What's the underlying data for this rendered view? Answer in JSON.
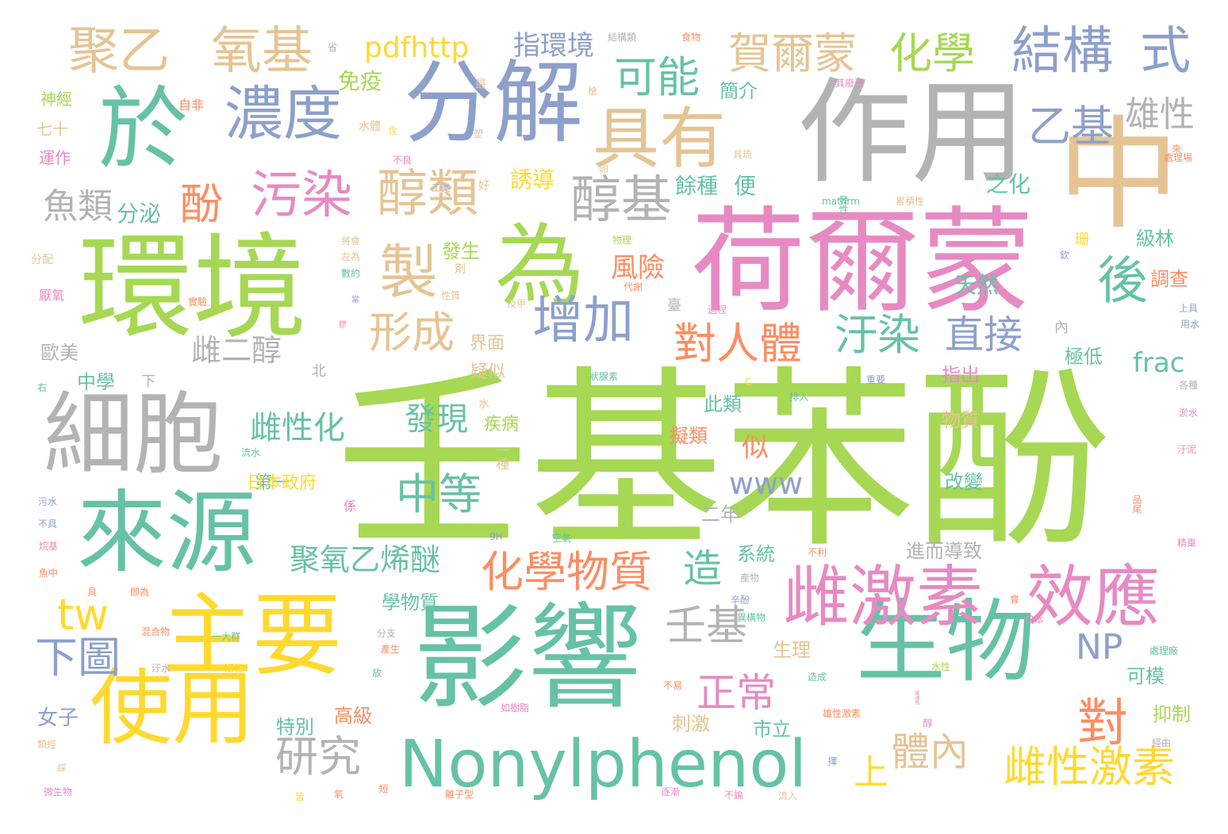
{
  "palette": {
    "green": "#a6d854",
    "teal": "#66c2a5",
    "orange": "#fc8d62",
    "blue": "#8da0cb",
    "pink": "#e78ac3",
    "yellow": "#ffd92f",
    "tan": "#e5c494",
    "gray": "#b3b3b3"
  },
  "words": [
    {
      "text": "壬基苯酚",
      "color": "green"
    },
    {
      "text": "荷爾蒙",
      "color": "pink"
    },
    {
      "text": "作用",
      "color": "gray"
    },
    {
      "text": "中",
      "color": "tan"
    },
    {
      "text": "環境",
      "color": "green"
    },
    {
      "text": "影響",
      "color": "teal"
    },
    {
      "text": "主要",
      "color": "yellow"
    },
    {
      "text": "分解",
      "color": "blue"
    },
    {
      "text": "生物",
      "color": "teal"
    },
    {
      "text": "細胞",
      "color": "gray"
    },
    {
      "text": "來源",
      "color": "teal"
    },
    {
      "text": "使用",
      "color": "yellow"
    },
    {
      "text": "於",
      "color": "teal"
    },
    {
      "text": "為",
      "color": "green"
    },
    {
      "text": "Nonylphenol",
      "color": "teal"
    },
    {
      "text": "雌激素",
      "color": "pink"
    },
    {
      "text": "效應",
      "color": "pink"
    },
    {
      "text": "具有",
      "color": "tan"
    },
    {
      "text": "濃度",
      "color": "blue"
    },
    {
      "text": "製",
      "color": "tan"
    },
    {
      "text": "聚乙",
      "color": "tan"
    },
    {
      "text": "氧基",
      "color": "tan"
    },
    {
      "text": "結構",
      "color": "blue"
    },
    {
      "text": "式",
      "color": "blue"
    },
    {
      "text": "賀爾蒙",
      "color": "tan"
    },
    {
      "text": "化學",
      "color": "green"
    },
    {
      "text": "增加",
      "color": "blue"
    },
    {
      "text": "污染",
      "color": "pink"
    },
    {
      "text": "醇類",
      "color": "tan"
    },
    {
      "text": "醇基",
      "color": "gray"
    },
    {
      "text": "可能",
      "color": "teal"
    },
    {
      "text": "後",
      "color": "teal"
    },
    {
      "text": "乙基",
      "color": "blue"
    },
    {
      "text": "雄性",
      "color": "gray"
    },
    {
      "text": "形成",
      "color": "tan"
    },
    {
      "text": "對人體",
      "color": "orange"
    },
    {
      "text": "汙染",
      "color": "teal"
    },
    {
      "text": "直接",
      "color": "blue"
    },
    {
      "text": "化學物質",
      "color": "orange"
    },
    {
      "text": "中等",
      "color": "teal"
    },
    {
      "text": "壬基",
      "color": "gray"
    },
    {
      "text": "正常",
      "color": "pink"
    },
    {
      "text": "對",
      "color": "orange"
    },
    {
      "text": "NP",
      "color": "blue"
    },
    {
      "text": "雌性激素",
      "color": "yellow"
    },
    {
      "text": "體內",
      "color": "tan"
    },
    {
      "text": "上",
      "color": "yellow"
    },
    {
      "text": "研究",
      "color": "gray"
    },
    {
      "text": "tw",
      "color": "yellow"
    },
    {
      "text": "下圖",
      "color": "blue"
    },
    {
      "text": "pdfhttp",
      "color": "yellow"
    },
    {
      "text": "酚",
      "color": "orange"
    },
    {
      "text": "魚類",
      "color": "gray"
    },
    {
      "text": "造",
      "color": "teal"
    },
    {
      "text": "聚氧乙烯醚",
      "color": "teal"
    },
    {
      "text": "雌二醇",
      "color": "gray"
    },
    {
      "text": "雌性化",
      "color": "teal"
    },
    {
      "text": "發現",
      "color": "teal"
    },
    {
      "text": "似",
      "color": "orange"
    },
    {
      "text": "www",
      "color": "blue"
    },
    {
      "text": "frac",
      "color": "teal"
    },
    {
      "text": "指環境",
      "color": "blue"
    },
    {
      "text": "風險",
      "color": "orange"
    },
    {
      "text": "天然",
      "color": "teal"
    },
    {
      "text": "免疫",
      "color": "green"
    },
    {
      "text": "分泌",
      "color": "teal"
    },
    {
      "text": "誘導",
      "color": "yellow"
    },
    {
      "text": "餘種",
      "color": "teal"
    },
    {
      "text": "便",
      "color": "teal"
    },
    {
      "text": "之化",
      "color": "teal"
    },
    {
      "text": "簡介",
      "color": "teal"
    },
    {
      "text": "級林",
      "color": "teal"
    },
    {
      "text": "珊",
      "color": "yellow"
    },
    {
      "text": "調查",
      "color": "orange"
    },
    {
      "text": "極低",
      "color": "teal"
    },
    {
      "text": "指出",
      "color": "pink"
    },
    {
      "text": "物質",
      "color": "tan"
    },
    {
      "text": "改變",
      "color": "teal"
    },
    {
      "text": "進而導致",
      "color": "gray"
    },
    {
      "text": "此類",
      "color": "teal"
    },
    {
      "text": "擬類",
      "color": "orange"
    },
    {
      "text": "疾病",
      "color": "green"
    },
    {
      "text": "中學",
      "color": "teal"
    },
    {
      "text": "下",
      "color": "gray"
    },
    {
      "text": "北",
      "color": "gray"
    },
    {
      "text": "歐美",
      "color": "gray"
    },
    {
      "text": "第一",
      "color": "teal"
    },
    {
      "text": "日本政府",
      "color": "yellow"
    },
    {
      "text": "二年",
      "color": "gray"
    },
    {
      "text": "系統",
      "color": "teal"
    },
    {
      "text": "學物質",
      "color": "teal"
    },
    {
      "text": "生理",
      "color": "tan"
    },
    {
      "text": "高級",
      "color": "orange"
    },
    {
      "text": "特別",
      "color": "teal"
    },
    {
      "text": "刺激",
      "color": "tan"
    },
    {
      "text": "市立",
      "color": "teal"
    },
    {
      "text": "女子",
      "color": "blue"
    },
    {
      "text": "可模",
      "color": "teal"
    },
    {
      "text": "抑制",
      "color": "green"
    },
    {
      "text": "發生",
      "color": "green"
    },
    {
      "text": "臺",
      "color": "gray"
    },
    {
      "text": "內",
      "color": "gray"
    },
    {
      "text": "疑似",
      "color": "tan"
    },
    {
      "text": "界面",
      "color": "tan"
    },
    {
      "text": "七十",
      "color": "tan"
    },
    {
      "text": "運作",
      "color": "pink"
    },
    {
      "text": "神經",
      "color": "green"
    },
    {
      "text": "厭氧",
      "color": "pink"
    },
    {
      "text": "分配",
      "color": "tan"
    },
    {
      "text": "自非",
      "color": "orange"
    },
    {
      "text": "最",
      "color": "tan"
    },
    {
      "text": "工業",
      "color": "gray"
    },
    {
      "text": "水體",
      "color": "tan"
    },
    {
      "text": "將會",
      "color": "tan"
    },
    {
      "text": "數約",
      "color": "teal"
    },
    {
      "text": "左為",
      "color": "tan"
    },
    {
      "text": "當",
      "color": "blue"
    },
    {
      "text": "物理",
      "color": "green"
    },
    {
      "text": "代謝",
      "color": "orange"
    },
    {
      "text": "mathrm",
      "color": "teal"
    },
    {
      "text": "累積性",
      "color": "tan"
    },
    {
      "text": "發性",
      "color": "teal"
    },
    {
      "text": "處理場",
      "color": "orange"
    },
    {
      "text": "過程",
      "color": "pink"
    },
    {
      "text": "狀腺素",
      "color": "teal"
    },
    {
      "text": "排入",
      "color": "teal"
    },
    {
      "text": "一種",
      "color": "tan"
    },
    {
      "text": "產物",
      "color": "gray"
    },
    {
      "text": "辛酚",
      "color": "blue"
    },
    {
      "text": "不利",
      "color": "orange"
    },
    {
      "text": "空氣",
      "color": "teal"
    },
    {
      "text": "異構物",
      "color": "teal"
    },
    {
      "text": "即為",
      "color": "orange"
    },
    {
      "text": "一大群",
      "color": "teal"
    },
    {
      "text": "活性",
      "color": "yellow"
    },
    {
      "text": "混合物",
      "color": "orange"
    },
    {
      "text": "汙水",
      "color": "gray"
    },
    {
      "text": "分支",
      "color": "gray"
    },
    {
      "text": "造成",
      "color": "teal"
    },
    {
      "text": "不易",
      "color": "orange"
    },
    {
      "text": "如樹脂",
      "color": "pink"
    },
    {
      "text": "雄性激素",
      "color": "orange"
    },
    {
      "text": "醇",
      "color": "pink"
    },
    {
      "text": "尾端魚",
      "color": "pink"
    },
    {
      "text": "水性",
      "color": "green"
    },
    {
      "text": "處理廠",
      "color": "teal"
    },
    {
      "text": "經由",
      "color": "gray"
    },
    {
      "text": "微生物",
      "color": "pink"
    },
    {
      "text": "皆",
      "color": "yellow"
    },
    {
      "text": "氧",
      "color": "orange"
    },
    {
      "text": "離子型",
      "color": "orange"
    },
    {
      "text": "逐漸",
      "color": "pink"
    },
    {
      "text": "不論",
      "color": "pink"
    },
    {
      "text": "流入",
      "color": "tan"
    },
    {
      "text": "擇",
      "color": "blue"
    },
    {
      "text": "短",
      "color": "orange"
    },
    {
      "text": "類經",
      "color": "tan"
    },
    {
      "text": "綵",
      "color": "tan"
    },
    {
      "text": "流水",
      "color": "teal"
    },
    {
      "text": "污水",
      "color": "blue"
    },
    {
      "text": "不具",
      "color": "blue"
    },
    {
      "text": "烷基",
      "color": "pink"
    },
    {
      "text": "魚中",
      "color": "orange"
    },
    {
      "text": "具",
      "color": "orange"
    },
    {
      "text": "係",
      "color": "pink"
    },
    {
      "text": "9H",
      "color": "blue"
    },
    {
      "text": "汙泥",
      "color": "pink"
    },
    {
      "text": "品尾",
      "color": "orange"
    },
    {
      "text": "精巢",
      "color": "pink"
    },
    {
      "text": "會",
      "color": "orange"
    },
    {
      "text": "日本",
      "color": "pink"
    },
    {
      "text": "各種",
      "color": "gray"
    },
    {
      "text": "淤水",
      "color": "pink"
    },
    {
      "text": "重要",
      "color": "blue"
    },
    {
      "text": "上具",
      "color": "blue"
    },
    {
      "text": "用水",
      "color": "blue"
    },
    {
      "text": "欽",
      "color": "blue"
    },
    {
      "text": "來",
      "color": "orange"
    },
    {
      "text": "其廢液",
      "color": "pink"
    },
    {
      "text": "食物",
      "color": "orange"
    },
    {
      "text": "結構類",
      "color": "gray"
    },
    {
      "text": "省",
      "color": "gray"
    },
    {
      "text": "槍",
      "color": "tan"
    },
    {
      "text": "塑",
      "color": "tan"
    },
    {
      "text": "含",
      "color": "yellow"
    },
    {
      "text": "具琉",
      "color": "tan"
    },
    {
      "text": "卵",
      "color": "tan"
    },
    {
      "text": "不良",
      "color": "pink"
    },
    {
      "text": "好",
      "color": "tan"
    },
    {
      "text": "剤",
      "color": "tan"
    },
    {
      "text": "及甲",
      "color": "tan"
    },
    {
      "text": "性質",
      "color": "tan"
    },
    {
      "text": "實驗",
      "color": "orange"
    },
    {
      "text": "膠",
      "color": "pink"
    },
    {
      "text": "右",
      "color": "teal"
    },
    {
      "text": "水",
      "color": "tan"
    },
    {
      "text": "產生",
      "color": "orange"
    },
    {
      "text": "放",
      "color": "teal"
    },
    {
      "text": "C",
      "color": "yellow"
    }
  ]
}
